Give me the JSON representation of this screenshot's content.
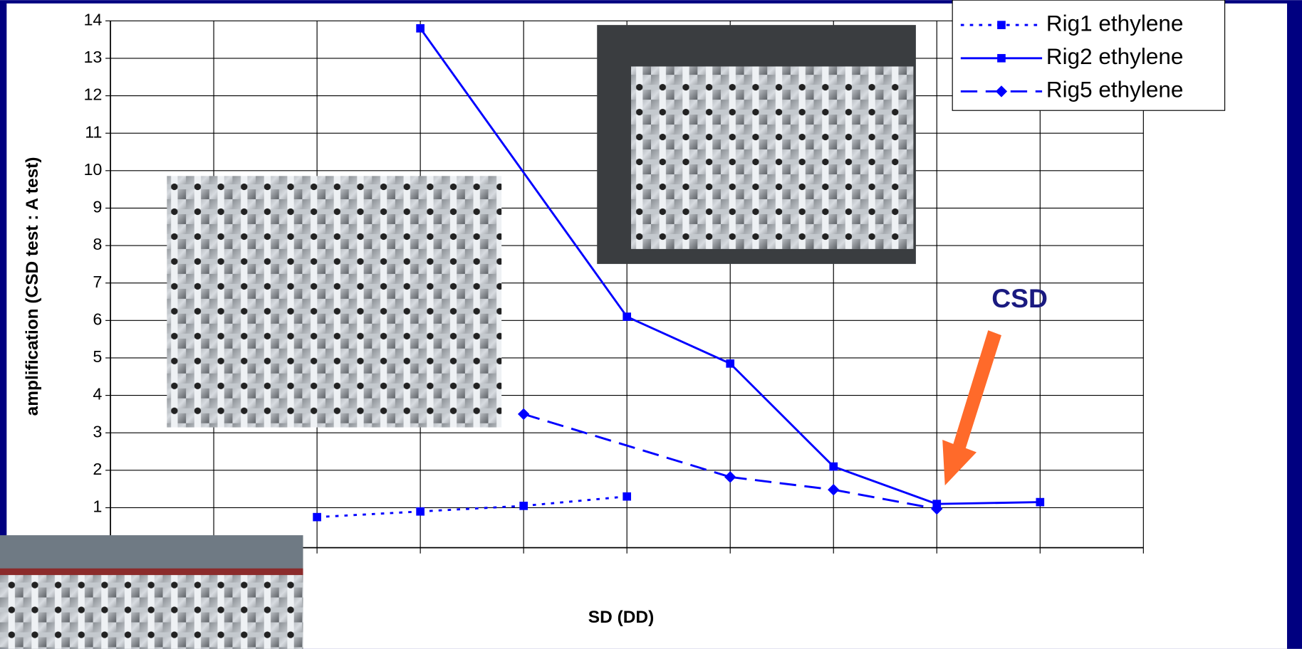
{
  "chart_data": {
    "type": "line",
    "y_label": "amplification (CSD test : A test)",
    "x_label": "SD (DD)",
    "annotation": "CSD",
    "categories": [
      null,
      null,
      null,
      null,
      null,
      null,
      null,
      null,
      null,
      null,
      null
    ],
    "series": [
      {
        "name": "Rig1 ethylene",
        "color": "#0000ff",
        "dash": "dotted",
        "marker": "square",
        "values": [
          null,
          null,
          0.75,
          0.9,
          1.05,
          1.3,
          null,
          null,
          null,
          null,
          null
        ]
      },
      {
        "name": "Rig2 ethylene",
        "color": "#0000ff",
        "dash": "solid",
        "marker": "square",
        "values": [
          null,
          null,
          null,
          13.8,
          null,
          6.1,
          4.85,
          2.1,
          1.1,
          1.15,
          null
        ]
      },
      {
        "name": "Rig5 ethylene",
        "color": "#0000ff",
        "dash": "dashed",
        "marker": "diamond",
        "values": [
          null,
          null,
          null,
          null,
          3.5,
          null,
          1.82,
          1.48,
          0.97,
          null,
          null
        ]
      }
    ],
    "connect_gaps": true,
    "ylim": [
      0,
      14
    ],
    "yticks": [
      1,
      2,
      3,
      4,
      5,
      6,
      7,
      8,
      9,
      10,
      11,
      12,
      13,
      14
    ],
    "grid": true,
    "legend": "top-right"
  }
}
